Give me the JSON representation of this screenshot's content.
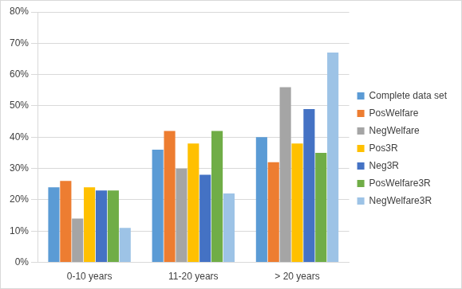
{
  "chart_data": {
    "type": "bar",
    "categories": [
      "0-10 years",
      "11-20 years",
      "> 20 years"
    ],
    "series": [
      {
        "name": "Complete data set",
        "color": "#5b9bd5",
        "values": [
          24,
          36,
          40
        ]
      },
      {
        "name": "PosWelfare",
        "color": "#ed7d31",
        "values": [
          26,
          42,
          32
        ]
      },
      {
        "name": "NegWelfare",
        "color": "#a5a5a5",
        "values": [
          14,
          30,
          56
        ]
      },
      {
        "name": "Pos3R",
        "color": "#ffc000",
        "values": [
          24,
          38,
          38
        ]
      },
      {
        "name": "Neg3R",
        "color": "#4472c4",
        "values": [
          23,
          28,
          49
        ]
      },
      {
        "name": "PosWelfare3R",
        "color": "#70ad47",
        "values": [
          23,
          42,
          35
        ]
      },
      {
        "name": "NegWelfare3R",
        "color": "#9dc3e6",
        "values": [
          11,
          22,
          67
        ]
      }
    ],
    "ylim": [
      0,
      80
    ],
    "yticks": [
      {
        "value": 0,
        "label": "0%"
      },
      {
        "value": 10,
        "label": "10%"
      },
      {
        "value": 20,
        "label": "20%"
      },
      {
        "value": 30,
        "label": "30%"
      },
      {
        "value": 40,
        "label": "40%"
      },
      {
        "value": 50,
        "label": "50%"
      },
      {
        "value": 60,
        "label": "60%"
      },
      {
        "value": 70,
        "label": "70%"
      },
      {
        "value": 80,
        "label": "80%"
      }
    ],
    "grid": true,
    "legend": "right"
  }
}
